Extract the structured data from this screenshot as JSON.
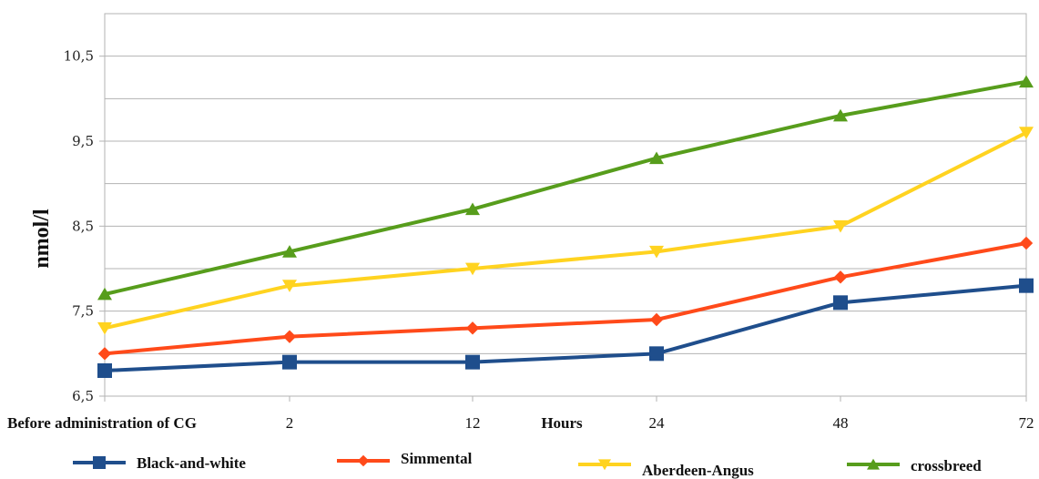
{
  "chart_data": {
    "type": "line",
    "categories": [
      "Before administration of CG",
      "2",
      "12",
      "24",
      "48",
      "72"
    ],
    "xlabel": "Hours",
    "ylabel": "nmol/l",
    "ylim": [
      6.5,
      11.0
    ],
    "yticks": [
      "6,5",
      "7,5",
      "8,5",
      "9,5",
      "10,5"
    ],
    "grid": true,
    "legend_position": "bottom",
    "series": [
      {
        "name": "Black-and-white",
        "values": [
          6.8,
          6.9,
          6.9,
          7.0,
          7.6,
          7.8
        ],
        "color": "#1f4e8c",
        "marker": "square"
      },
      {
        "name": "Simmental",
        "values": [
          7.0,
          7.2,
          7.3,
          7.4,
          7.9,
          8.3
        ],
        "color": "#ff4a1a",
        "marker": "diamond"
      },
      {
        "name": "Aberdeen-Angus",
        "values": [
          7.3,
          7.8,
          8.0,
          8.2,
          8.5,
          9.6
        ],
        "color": "#ffd320",
        "marker": "triangle-down"
      },
      {
        "name": "crossbreed",
        "values": [
          7.7,
          8.2,
          8.7,
          9.3,
          9.8,
          10.2
        ],
        "color": "#579d1c",
        "marker": "triangle-up"
      }
    ]
  }
}
